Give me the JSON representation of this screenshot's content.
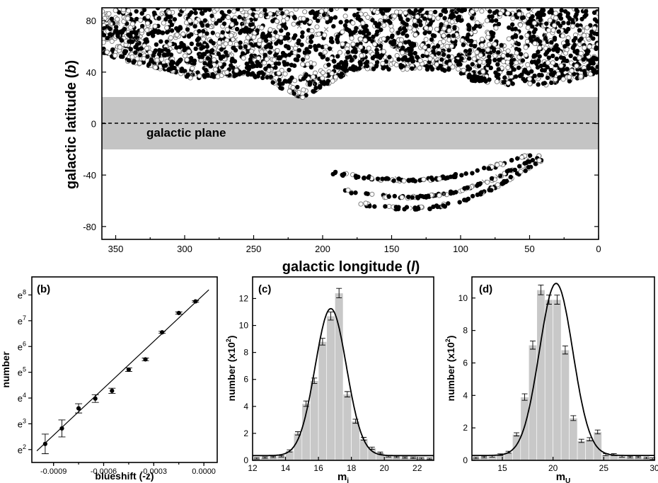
{
  "chart_data": [
    {
      "type": "scatter",
      "xlabel_prefix": "galactic longitude (",
      "xlabel_var": "l",
      "xlabel_suffix": ")",
      "ylabel_prefix": "galactic latitude (",
      "ylabel_var": "b",
      "ylabel_suffix": ")",
      "xlim": [
        360,
        0
      ],
      "ylim": [
        -90,
        90
      ],
      "xticks": [
        "350",
        "300",
        "250",
        "200",
        "150",
        "100",
        "50",
        "0"
      ],
      "yticks": [
        "80",
        "40",
        "0",
        "-40",
        "-80"
      ],
      "band": {
        "from": -20,
        "to": 20,
        "label": "galactic plane"
      },
      "series": [
        {
          "marker": "filled-circle",
          "color": "#000000",
          "regions": "dense north cap b 20-90, southern arcs b -25 to -75"
        },
        {
          "marker": "open-circle",
          "color": "#777777"
        },
        {
          "marker": "cross",
          "color": "#777777"
        }
      ]
    },
    {
      "type": "scatter",
      "panel_label": "(b)",
      "xlabel": "blueshift (-z)",
      "ylabel": "number",
      "xlim": [
        -0.00103,
        8e-05
      ],
      "ylim": [
        1.5,
        8.7
      ],
      "xticks": [
        "-0.0009",
        "-0.0006",
        "-0.0003",
        "0.0000"
      ],
      "yticks_exp": [
        "2",
        "3",
        "4",
        "5",
        "6",
        "7",
        "8"
      ],
      "ytick_base": "e",
      "points": [
        {
          "x": -0.00095,
          "y": 2.22,
          "err": 0.38
        },
        {
          "x": -0.00085,
          "y": 2.82,
          "err": 0.33
        },
        {
          "x": -0.00075,
          "y": 3.6,
          "err": 0.18
        },
        {
          "x": -0.00065,
          "y": 3.98,
          "err": 0.15
        },
        {
          "x": -0.00055,
          "y": 4.28,
          "err": 0.1
        },
        {
          "x": -0.00045,
          "y": 5.1,
          "err": 0.07
        },
        {
          "x": -0.00035,
          "y": 5.5,
          "err": 0.05
        },
        {
          "x": -0.00025,
          "y": 6.55,
          "err": 0.04
        },
        {
          "x": -0.00015,
          "y": 7.3,
          "err": 0.04
        },
        {
          "x": -5e-05,
          "y": 7.75,
          "err": 0.03
        }
      ],
      "fit_line": [
        [
          -0.001,
          1.95
        ],
        [
          3e-05,
          8.2
        ]
      ]
    },
    {
      "type": "bar",
      "panel_label": "(c)",
      "xlabel": "m",
      "xlabel_sub": "i",
      "ylabel": "number (x10",
      "ylabel_sup": "2",
      "ylabel_end": ")",
      "xlim": [
        12,
        23
      ],
      "ylim": [
        0,
        13.6
      ],
      "xticks": [
        "12",
        "14",
        "16",
        "18",
        "20",
        "22"
      ],
      "yticks": [
        "0",
        "2",
        "4",
        "6",
        "8",
        "10",
        "12"
      ],
      "bin_width": 0.5,
      "bin_starts": [
        12,
        12.5,
        13,
        13.5,
        14,
        14.5,
        15,
        15.5,
        16,
        16.5,
        17,
        17.5,
        18,
        18.5,
        19,
        19.5,
        20,
        20.5,
        21,
        21.5,
        22,
        22.5
      ],
      "values": [
        0.15,
        0.2,
        0.25,
        0.3,
        0.7,
        2.0,
        4.2,
        5.9,
        8.8,
        10.7,
        12.4,
        4.9,
        2.9,
        1.6,
        0.9,
        0.55,
        0.3,
        0.25,
        0.2,
        0.18,
        0.15,
        0.12
      ],
      "errors": [
        0.05,
        0.05,
        0.05,
        0.05,
        0.08,
        0.12,
        0.2,
        0.2,
        0.25,
        0.3,
        0.35,
        0.2,
        0.15,
        0.1,
        0.08,
        0.06,
        0.05,
        0.05,
        0.05,
        0.05,
        0.05,
        0.05
      ],
      "fit": {
        "model": "gaussian",
        "amplitude": 10.9,
        "center": 16.75,
        "sigma": 0.95,
        "offset": 0.35
      }
    },
    {
      "type": "bar",
      "panel_label": "(d)",
      "xlabel": "m",
      "xlabel_sub": "U",
      "ylabel": "number (x10",
      "ylabel_sup": "2",
      "ylabel_end": ")",
      "xlim": [
        12,
        30
      ],
      "ylim": [
        0,
        11.3
      ],
      "xticks": [
        "15",
        "20",
        "25",
        "30"
      ],
      "yticks": [
        "0",
        "2",
        "4",
        "6",
        "8",
        "10"
      ],
      "bin_width": 0.8,
      "bin_starts": [
        12.0,
        12.8,
        13.6,
        14.4,
        15.2,
        16.0,
        16.8,
        17.6,
        18.4,
        19.2,
        20.0,
        20.8,
        21.6,
        22.4,
        23.2,
        24.0,
        24.8,
        25.6,
        26.4,
        27.2,
        28.0,
        28.8,
        29.6
      ],
      "values": [
        0.15,
        0.2,
        0.25,
        0.35,
        0.5,
        1.6,
        3.9,
        7.1,
        10.5,
        9.9,
        9.9,
        6.8,
        2.6,
        1.2,
        1.3,
        1.75,
        0.35,
        0.35,
        0.25,
        0.2,
        0.2,
        0.15,
        0.1
      ],
      "errors": [
        0.05,
        0.05,
        0.05,
        0.05,
        0.06,
        0.1,
        0.2,
        0.25,
        0.3,
        0.28,
        0.28,
        0.25,
        0.15,
        0.1,
        0.1,
        0.12,
        0.06,
        0.06,
        0.05,
        0.05,
        0.05,
        0.05,
        0.05
      ],
      "fit": {
        "model": "gaussian",
        "amplitude": 10.6,
        "center": 20.3,
        "sigma": 1.65,
        "offset": 0.3
      }
    }
  ]
}
